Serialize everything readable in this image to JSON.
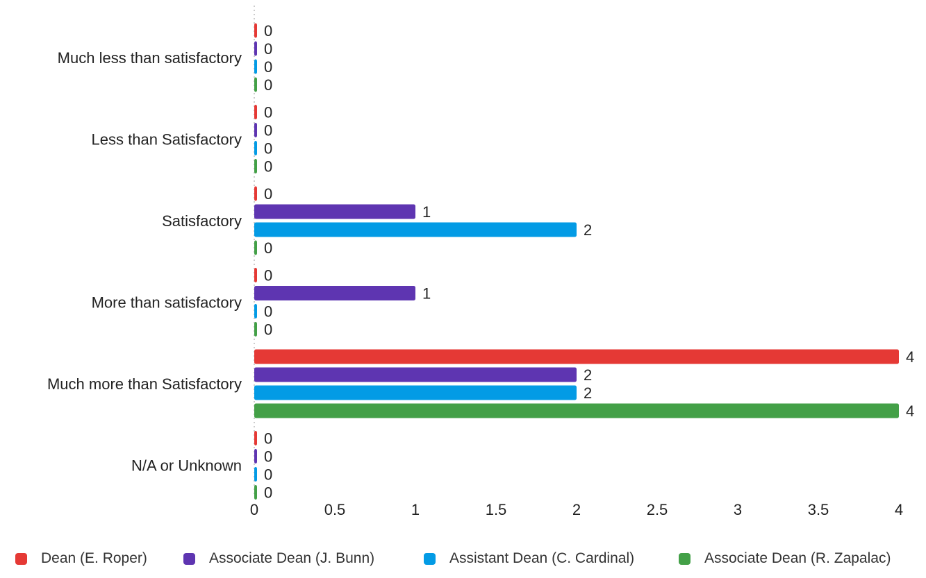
{
  "chart_data": {
    "type": "bar",
    "orientation": "horizontal",
    "categories": [
      "Much less than satisfactory",
      "Less than Satisfactory",
      "Satisfactory",
      "More than satisfactory",
      "Much more than Satisfactory",
      "N/A or Unknown"
    ],
    "series": [
      {
        "name": "Dean (E. Roper)",
        "color": "#e53935",
        "values": [
          0,
          0,
          0,
          0,
          4,
          0
        ]
      },
      {
        "name": "Associate Dean (J. Bunn)",
        "color": "#5e35b1",
        "values": [
          0,
          0,
          1,
          1,
          2,
          0
        ]
      },
      {
        "name": "Assistant Dean (C. Cardinal)",
        "color": "#039be5",
        "values": [
          0,
          0,
          2,
          0,
          2,
          0
        ]
      },
      {
        "name": "Associate Dean (R. Zapalac)",
        "color": "#43a047",
        "values": [
          0,
          0,
          0,
          0,
          4,
          0
        ]
      }
    ],
    "xticks": [
      "0",
      "0.5",
      "1",
      "1.5",
      "2",
      "2.5",
      "3",
      "3.5",
      "4"
    ],
    "xlim": [
      0,
      4
    ],
    "grid": false,
    "legend": "bottom",
    "title": "",
    "xlabel": "",
    "ylabel": ""
  }
}
